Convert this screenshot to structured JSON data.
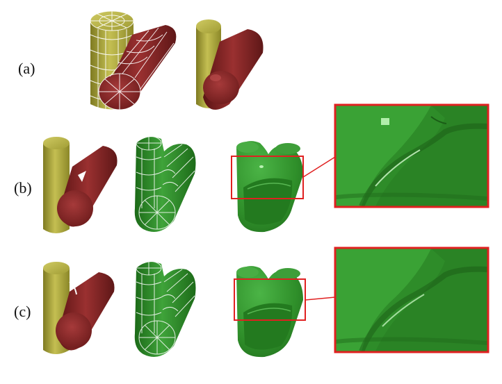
{
  "rows": [
    {
      "label": "(a)"
    },
    {
      "label": "(b)"
    },
    {
      "label": "(c)"
    }
  ],
  "colors": {
    "yellow_cylinder": "#a6a23a",
    "red_cylinder": "#7e2323",
    "green_surface": "#2f8f2a",
    "highlight_box": "#e02020",
    "mesh_lines": "#ffffff"
  }
}
